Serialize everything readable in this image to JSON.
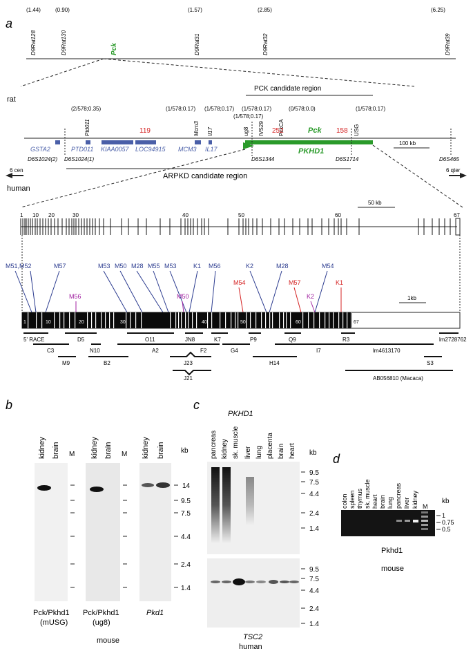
{
  "panels": {
    "a": "a",
    "b": "b",
    "c": "c",
    "d": "d"
  },
  "rat_map": {
    "markers": [
      {
        "name": "D9Rat128",
        "cm": "(1.44)"
      },
      {
        "name": "D9Rat130",
        "cm": "(0.90)"
      },
      {
        "name": "D9Rat31",
        "cm": "(1.57)"
      },
      {
        "name": "D9Rat32",
        "cm": "(2.85)"
      },
      {
        "name": "D9Rat39",
        "cm": "(6.25)"
      }
    ],
    "pck": "Pck",
    "rat": "rat",
    "pck_region": "PCK candidate region",
    "ratios": [
      "(2/578;0.35)",
      "(1/578;0.17)",
      "(1/578;0.17)",
      "(1/578;0.17)",
      "(1/578;0.17)",
      "(0/578;0.0)",
      "(1/578;0.17)"
    ],
    "genes_top": [
      "Ptd011",
      "Mcm3",
      "Il17",
      "ug8",
      "IVS29",
      "PckCA",
      "USG"
    ],
    "numbers": [
      "119",
      "252",
      "158"
    ],
    "pck_gene": "Pck",
    "scale": "100 kb",
    "human_genes": [
      "GSTA2",
      "PTD011",
      "KIAA0057",
      "LOC94915",
      "MCM3",
      "IL17"
    ],
    "pkhd1": "PKHD1",
    "human_markers": [
      "D6S1024(2)",
      "D6S1024(1)",
      "D6S1344",
      "D6S1714",
      "D6S465"
    ],
    "cen": "6 cen",
    "qter": "6 qter",
    "human": "human",
    "arpkd": "ARPKD candidate region"
  },
  "exon_map": {
    "exon_nums": [
      "1",
      "10",
      "20",
      "30",
      "40",
      "50",
      "60",
      "67"
    ],
    "scale": "50 kb"
  },
  "mutations": {
    "top_blue": [
      "M51,M52",
      "M57",
      "M53",
      "M50",
      "M28",
      "M55",
      "M53",
      "K1",
      "M56",
      "K2",
      "M28",
      "M54"
    ],
    "mid": [
      "M56",
      "M50",
      "M54",
      "M57",
      "K2",
      "K1"
    ],
    "scale": "1kb",
    "cdna_nums": [
      "1",
      "10",
      "20",
      "30",
      "40",
      "50",
      "60",
      "67"
    ],
    "fragments": [
      "5' RACE",
      "D5",
      "O11",
      "JN8",
      "K7",
      "P9",
      "Q9",
      "R3",
      "lm2728762",
      "C3",
      "N10",
      "A2",
      "F2",
      "G4",
      "I7",
      "lm4613170",
      "M9",
      "B2",
      "J23",
      "H14",
      "S3",
      "J21",
      "AB056810 (Macaca)"
    ]
  },
  "blot_b": {
    "lanes": [
      "kidney",
      "brain",
      "M",
      "kidney",
      "brain",
      "M",
      "kidney",
      "brain"
    ],
    "kb": "kb",
    "sizes": [
      "14",
      "9.5",
      "7.5",
      "4.4",
      "2.4",
      "1.4"
    ],
    "captions": [
      "Pck/Pkhd1",
      "(mUSG)",
      "Pck/Pkhd1",
      "(ug8)",
      "Pkd1"
    ],
    "species": "mouse"
  },
  "blot_c": {
    "title": "PKHD1",
    "lanes": [
      "pancreas",
      "kidney",
      "sk. muscle",
      "liver",
      "lung",
      "placenta",
      "brain",
      "heart"
    ],
    "kb": "kb",
    "sizes_top": [
      "9.5",
      "7.5",
      "4.4",
      "2.4",
      "1.4"
    ],
    "sizes_bottom": [
      "9.5",
      "7.5",
      "4.4",
      "2.4",
      "1.4"
    ],
    "bottom_title": "TSC2",
    "species": "human"
  },
  "blot_d": {
    "lanes": [
      "colon",
      "spleen",
      "thymus",
      "sk. muscle",
      "heart",
      "brain",
      "lung",
      "pancreas",
      "liver",
      "kidney",
      "M"
    ],
    "kb": "kb",
    "sizes": [
      "1",
      "0.75",
      "0.5"
    ],
    "gene": "Pkhd1",
    "species": "mouse"
  }
}
